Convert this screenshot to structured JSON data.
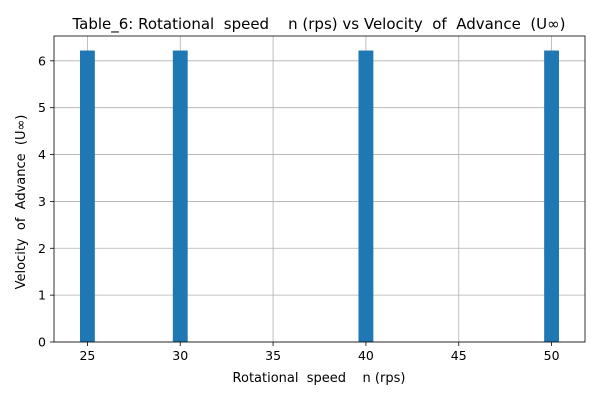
{
  "chart_data": {
    "type": "bar",
    "title": "Table_6: Rotational  speed    n (rps) vs Velocity  of  Advance  (U∞)",
    "xlabel": "Rotational  speed    n (rps)",
    "ylabel": "Velocity  of  Advance  (U∞)",
    "x": [
      25,
      30,
      40,
      50
    ],
    "values": [
      6.22,
      6.22,
      6.22,
      6.22
    ],
    "xlim": [
      23.2,
      51.8
    ],
    "ylim": [
      0,
      6.53
    ],
    "xticks": [
      25,
      30,
      35,
      40,
      45,
      50
    ],
    "yticks": [
      0,
      1,
      2,
      3,
      4,
      5,
      6
    ],
    "bar_color": "#1f77b4",
    "grid": true,
    "legend": "none"
  }
}
